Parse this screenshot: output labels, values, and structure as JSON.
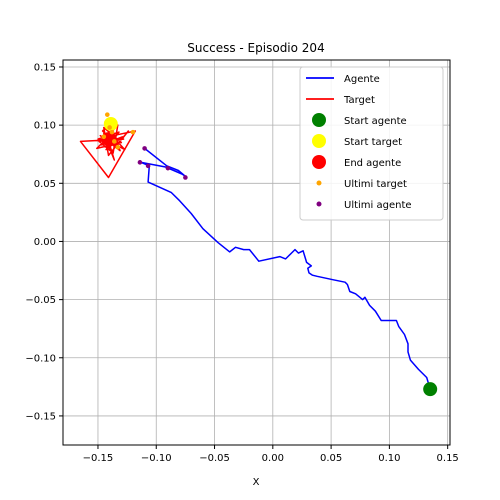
{
  "chart_data": {
    "type": "line",
    "title": "Success - Episodio 204",
    "xlabel": "X",
    "ylabel": "",
    "xlim": [
      -0.18,
      0.152
    ],
    "ylim": [
      -0.175,
      0.156
    ],
    "grid": true,
    "xticks": [
      -0.15,
      -0.1,
      -0.05,
      0.0,
      0.05,
      0.1,
      0.15
    ],
    "xtick_labels": [
      "−0.15",
      "−0.10",
      "−0.05",
      "0.00",
      "0.05",
      "0.10",
      "0.15"
    ],
    "yticks": [
      -0.15,
      -0.1,
      -0.05,
      0.0,
      0.05,
      0.1,
      0.15
    ],
    "ytick_labels": [
      "−0.15",
      "−0.10",
      "−0.05",
      "0.00",
      "0.05",
      "0.10",
      "0.15"
    ],
    "legend_position": "top-right",
    "series": [
      {
        "name": "Agente",
        "kind": "line",
        "color": "#0000ff",
        "points": [
          [
            0.135,
            -0.127
          ],
          [
            0.132,
            -0.117
          ],
          [
            0.125,
            -0.11
          ],
          [
            0.118,
            -0.102
          ],
          [
            0.116,
            -0.095
          ],
          [
            0.116,
            -0.088
          ],
          [
            0.113,
            -0.08
          ],
          [
            0.108,
            -0.073
          ],
          [
            0.106,
            -0.068
          ],
          [
            0.093,
            -0.068
          ],
          [
            0.088,
            -0.06
          ],
          [
            0.083,
            -0.055
          ],
          [
            0.079,
            -0.048
          ],
          [
            0.077,
            -0.05
          ],
          [
            0.071,
            -0.045
          ],
          [
            0.066,
            -0.043
          ],
          [
            0.064,
            -0.037
          ],
          [
            0.062,
            -0.035
          ],
          [
            0.052,
            -0.033
          ],
          [
            0.038,
            -0.03
          ],
          [
            0.034,
            -0.029
          ],
          [
            0.031,
            -0.027
          ],
          [
            0.03,
            -0.023
          ],
          [
            0.033,
            -0.021
          ],
          [
            0.029,
            -0.018
          ],
          [
            0.026,
            -0.008
          ],
          [
            0.022,
            -0.01
          ],
          [
            0.019,
            -0.007
          ],
          [
            0.011,
            -0.015
          ],
          [
            0.006,
            -0.013
          ],
          [
            -0.012,
            -0.017
          ],
          [
            -0.02,
            -0.007
          ],
          [
            -0.025,
            -0.007
          ],
          [
            -0.032,
            -0.005
          ],
          [
            -0.037,
            -0.009
          ],
          [
            -0.047,
            -0.001
          ],
          [
            -0.06,
            0.011
          ],
          [
            -0.07,
            0.024
          ],
          [
            -0.08,
            0.035
          ],
          [
            -0.087,
            0.042
          ],
          [
            -0.107,
            0.051
          ],
          [
            -0.106,
            0.065
          ],
          [
            -0.113,
            0.068
          ],
          [
            -0.092,
            0.064
          ],
          [
            -0.078,
            0.058
          ],
          [
            -0.075,
            0.056
          ],
          [
            -0.081,
            0.061
          ],
          [
            -0.091,
            0.065
          ],
          [
            -0.11,
            0.08
          ]
        ]
      },
      {
        "name": "Target",
        "kind": "line",
        "color": "#ff0000",
        "points": [
          [
            -0.14,
            0.102
          ],
          [
            -0.146,
            0.095
          ],
          [
            -0.136,
            0.085
          ],
          [
            -0.15,
            0.088
          ],
          [
            -0.132,
            0.094
          ],
          [
            -0.143,
            0.079
          ],
          [
            -0.129,
            0.09
          ],
          [
            -0.147,
            0.083
          ],
          [
            -0.138,
            0.097
          ],
          [
            -0.131,
            0.078
          ],
          [
            -0.148,
            0.091
          ],
          [
            -0.134,
            0.082
          ],
          [
            -0.124,
            0.095
          ],
          [
            -0.141,
            0.074
          ],
          [
            -0.145,
            0.098
          ],
          [
            -0.13,
            0.085
          ],
          [
            -0.151,
            0.08
          ],
          [
            -0.139,
            0.092
          ],
          [
            -0.127,
            0.079
          ],
          [
            -0.144,
            0.088
          ],
          [
            -0.133,
            0.1
          ],
          [
            -0.137,
            0.076
          ],
          [
            -0.149,
            0.086
          ],
          [
            -0.128,
            0.088
          ],
          [
            -0.165,
            0.086
          ],
          [
            -0.141,
            0.055
          ],
          [
            -0.118,
            0.095
          ],
          [
            -0.142,
            0.09
          ],
          [
            -0.136,
            0.07
          ],
          [
            -0.145,
            0.093
          ],
          [
            -0.132,
            0.08
          ],
          [
            -0.141,
            0.088
          ]
        ]
      },
      {
        "name": "Ultimi target",
        "kind": "scatter",
        "color": "#ffa500",
        "points": [
          [
            -0.142,
            0.109
          ],
          [
            -0.14,
            0.098
          ],
          [
            -0.138,
            0.094
          ],
          [
            -0.12,
            0.094
          ],
          [
            -0.133,
            0.081
          ],
          [
            -0.145,
            0.09
          ],
          [
            -0.136,
            0.086
          ]
        ]
      },
      {
        "name": "Ultimi agente",
        "kind": "scatter",
        "color": "#800080",
        "points": [
          [
            -0.11,
            0.08
          ],
          [
            -0.114,
            0.068
          ],
          [
            -0.107,
            0.065
          ],
          [
            -0.075,
            0.055
          ],
          [
            -0.09,
            0.063
          ]
        ]
      }
    ],
    "markers": [
      {
        "name": "Start agente",
        "color": "#008000",
        "point": [
          0.135,
          -0.127
        ]
      },
      {
        "name": "Start target",
        "color": "#ffff00",
        "point": [
          -0.139,
          0.101
        ]
      },
      {
        "name": "End agente",
        "color": "#ff0000",
        "point": [
          -0.141,
          0.088
        ]
      }
    ],
    "legend": [
      {
        "label": "Agente",
        "kind": "line",
        "color": "#0000ff"
      },
      {
        "label": "Target",
        "kind": "line",
        "color": "#ff0000"
      },
      {
        "label": "Start agente",
        "kind": "big-dot",
        "color": "#008000"
      },
      {
        "label": "Start target",
        "kind": "big-dot",
        "color": "#ffff00"
      },
      {
        "label": "End agente",
        "kind": "big-dot",
        "color": "#ff0000"
      },
      {
        "label": "Ultimi target",
        "kind": "small-dot",
        "color": "#ffa500"
      },
      {
        "label": "Ultimi agente",
        "kind": "small-dot",
        "color": "#800080"
      }
    ]
  }
}
